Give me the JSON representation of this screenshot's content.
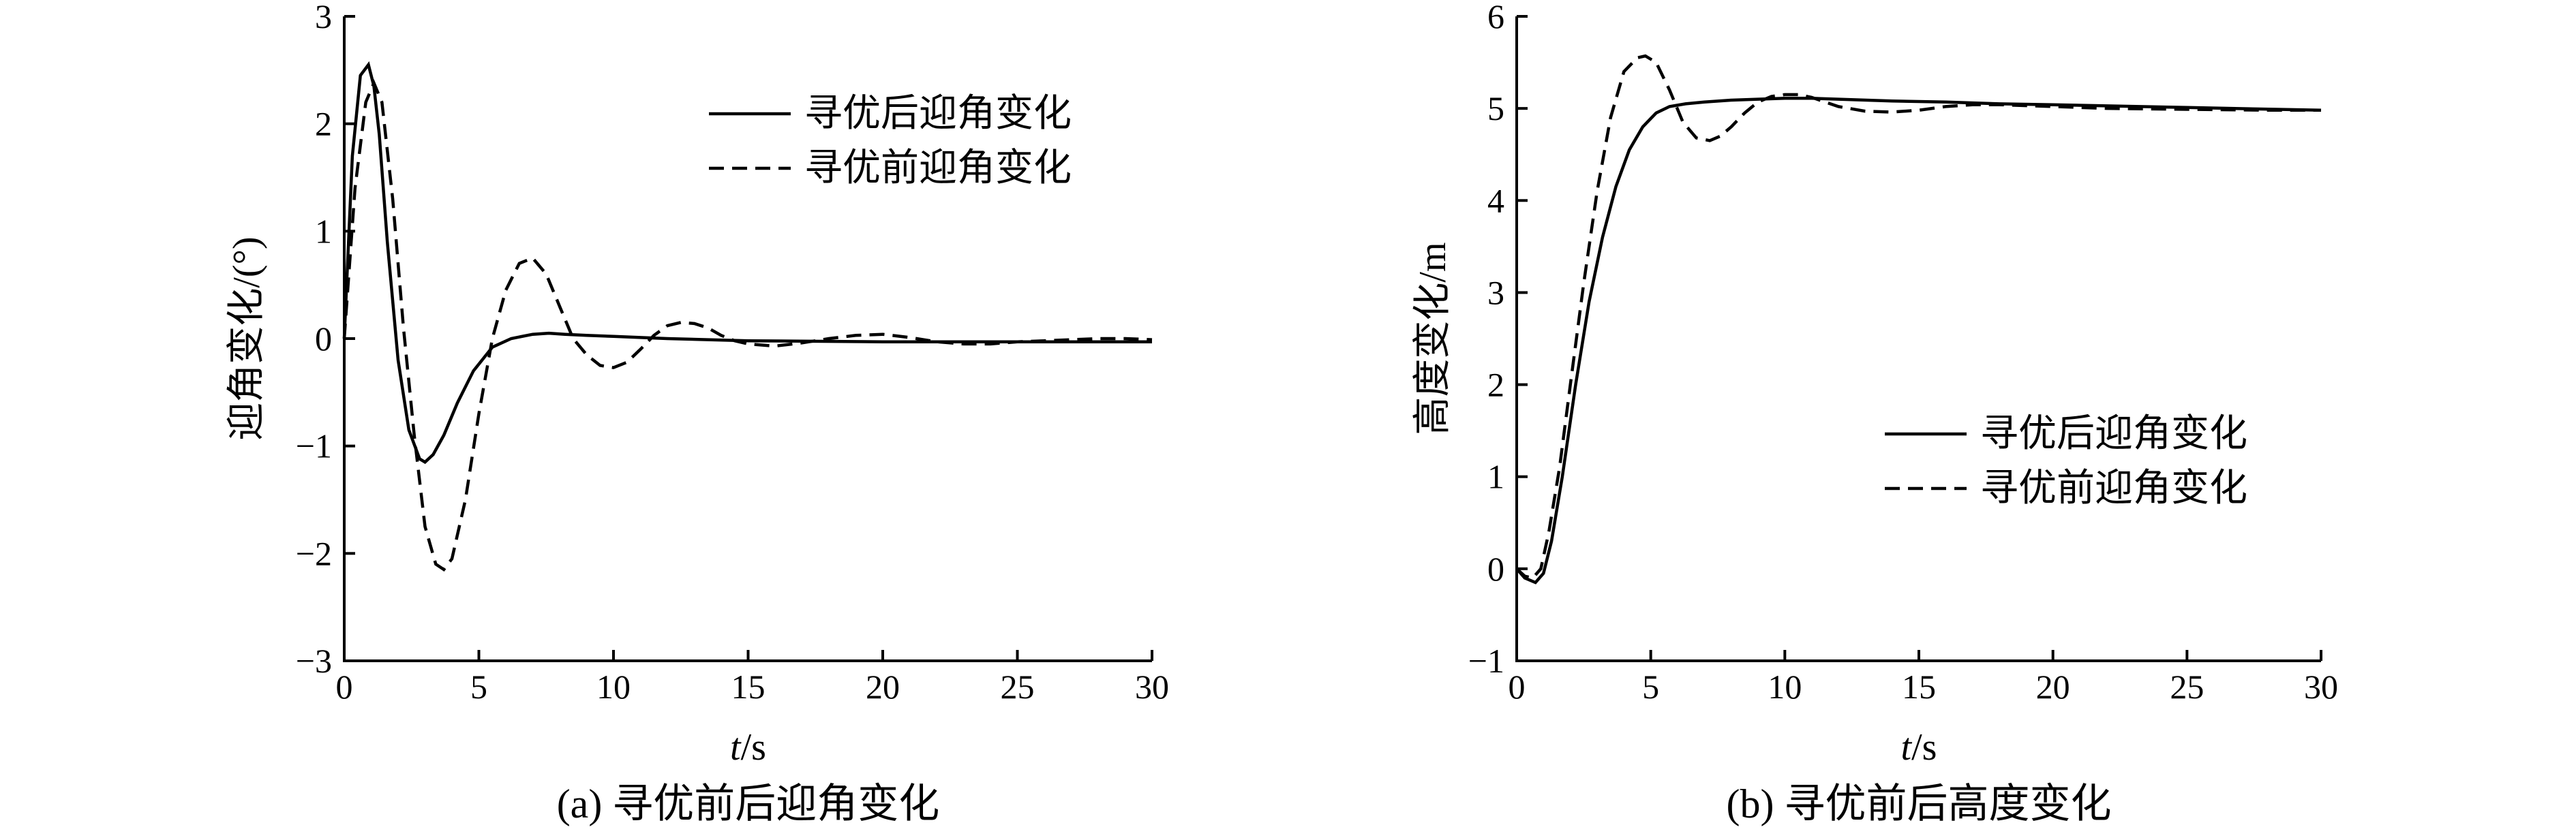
{
  "chart_data": [
    {
      "type": "line",
      "caption": "(a) 寻优前后迎角变化",
      "title": "",
      "xlabel_italic": "t",
      "xlabel_unit": "/s",
      "ylabel": "迎角变化/(°)",
      "xlim": [
        0,
        30
      ],
      "ylim": [
        -3,
        3
      ],
      "xticks": [
        0,
        5,
        10,
        15,
        20,
        25,
        30
      ],
      "xtick_labels": [
        "0",
        "5",
        "10",
        "15",
        "20",
        "25",
        "30"
      ],
      "yticks": [
        -3,
        -2,
        -1,
        0,
        1,
        2,
        3
      ],
      "ytick_labels": [
        "−3",
        "−2",
        "−1",
        "0",
        "1",
        "2",
        "3"
      ],
      "grid": false,
      "legend_position": "top-right",
      "series": [
        {
          "name": "寻优后迎角变化",
          "style": "solid",
          "x": [
            0,
            0.3,
            0.6,
            0.9,
            1.1,
            1.3,
            1.6,
            2.0,
            2.4,
            2.8,
            3.0,
            3.3,
            3.7,
            4.2,
            4.8,
            5.5,
            6.2,
            7.0,
            7.6,
            8.2,
            9,
            10,
            12,
            15,
            20,
            25,
            30
          ],
          "y": [
            0.0,
            1.7,
            2.45,
            2.55,
            2.35,
            1.9,
            0.9,
            -0.2,
            -0.85,
            -1.12,
            -1.15,
            -1.08,
            -0.9,
            -0.6,
            -0.3,
            -0.08,
            0.0,
            0.04,
            0.05,
            0.04,
            0.03,
            0.02,
            0.0,
            -0.02,
            -0.03,
            -0.03,
            -0.03
          ]
        },
        {
          "name": "寻优前迎角变化",
          "style": "dashed",
          "x": [
            0,
            0.4,
            0.8,
            1.1,
            1.4,
            1.8,
            2.2,
            2.6,
            3.0,
            3.4,
            3.7,
            4.0,
            4.5,
            5.0,
            5.5,
            6.0,
            6.5,
            7.0,
            7.5,
            8.0,
            8.5,
            9.0,
            9.5,
            10.0,
            10.5,
            11.0,
            11.5,
            12.0,
            12.5,
            13.0,
            13.5,
            14.0,
            14.5,
            15.0,
            16.0,
            17.0,
            18.0,
            19.0,
            20.0,
            21.0,
            22.0,
            23.0,
            24.0,
            25.0,
            26.0,
            27.0,
            28.0,
            29.0,
            30.0
          ],
          "y": [
            0.0,
            1.4,
            2.2,
            2.38,
            2.2,
            1.3,
            0.1,
            -0.9,
            -1.75,
            -2.1,
            -2.15,
            -2.05,
            -1.5,
            -0.7,
            0.0,
            0.45,
            0.7,
            0.75,
            0.6,
            0.3,
            0.0,
            -0.15,
            -0.25,
            -0.27,
            -0.22,
            -0.1,
            0.03,
            0.12,
            0.15,
            0.14,
            0.1,
            0.03,
            -0.02,
            -0.05,
            -0.07,
            -0.04,
            0.0,
            0.03,
            0.04,
            0.01,
            -0.03,
            -0.05,
            -0.05,
            -0.03,
            -0.02,
            -0.01,
            0.0,
            0.0,
            -0.01
          ]
        }
      ]
    },
    {
      "type": "line",
      "caption": "(b) 寻优前后高度变化",
      "title": "",
      "xlabel_italic": "t",
      "xlabel_unit": "/s",
      "ylabel": "高度变化/m",
      "xlim": [
        0,
        30
      ],
      "ylim": [
        -1,
        6
      ],
      "xticks": [
        0,
        5,
        10,
        15,
        20,
        25,
        30
      ],
      "xtick_labels": [
        "0",
        "5",
        "10",
        "15",
        "20",
        "25",
        "30"
      ],
      "yticks": [
        -1,
        0,
        1,
        2,
        3,
        4,
        5,
        6
      ],
      "ytick_labels": [
        "−1",
        "0",
        "1",
        "2",
        "3",
        "4",
        "5",
        "6"
      ],
      "grid": false,
      "legend_position": "middle-right",
      "series": [
        {
          "name": "寻优后迎角变化",
          "style": "solid",
          "x": [
            0,
            0.3,
            0.7,
            1.0,
            1.3,
            1.7,
            2.2,
            2.7,
            3.2,
            3.7,
            4.2,
            4.7,
            5.2,
            5.7,
            6.3,
            7.0,
            8.0,
            9.0,
            10.0,
            11.0,
            12.0,
            14.0,
            16.0,
            18.0,
            20.0,
            25.0,
            30.0
          ],
          "y": [
            0.0,
            -0.1,
            -0.15,
            -0.05,
            0.3,
            1.0,
            2.0,
            2.9,
            3.6,
            4.15,
            4.55,
            4.8,
            4.95,
            5.02,
            5.05,
            5.07,
            5.09,
            5.1,
            5.11,
            5.11,
            5.1,
            5.08,
            5.07,
            5.05,
            5.04,
            5.01,
            4.98
          ]
        },
        {
          "name": "寻优前迎角变化",
          "style": "dashed",
          "x": [
            0,
            0.3,
            0.6,
            0.9,
            1.2,
            1.6,
            2.0,
            2.5,
            3.0,
            3.5,
            4.0,
            4.5,
            4.8,
            5.2,
            5.7,
            6.2,
            6.7,
            7.2,
            7.6,
            8.0,
            8.5,
            9.0,
            9.5,
            10.0,
            10.5,
            11.0,
            11.5,
            12.0,
            13.0,
            14.0,
            15.0,
            16.0,
            17.0,
            18.0,
            20.0,
            22.0,
            25.0,
            28.0,
            30.0
          ],
          "y": [
            0.0,
            -0.08,
            -0.1,
            0.0,
            0.4,
            1.1,
            2.0,
            3.1,
            4.1,
            4.9,
            5.4,
            5.55,
            5.57,
            5.5,
            5.2,
            4.85,
            4.68,
            4.65,
            4.7,
            4.8,
            4.95,
            5.07,
            5.13,
            5.15,
            5.15,
            5.12,
            5.07,
            5.02,
            4.97,
            4.96,
            4.98,
            5.02,
            5.04,
            5.04,
            5.02,
            5.0,
            4.99,
            4.98,
            4.98
          ]
        }
      ]
    }
  ]
}
